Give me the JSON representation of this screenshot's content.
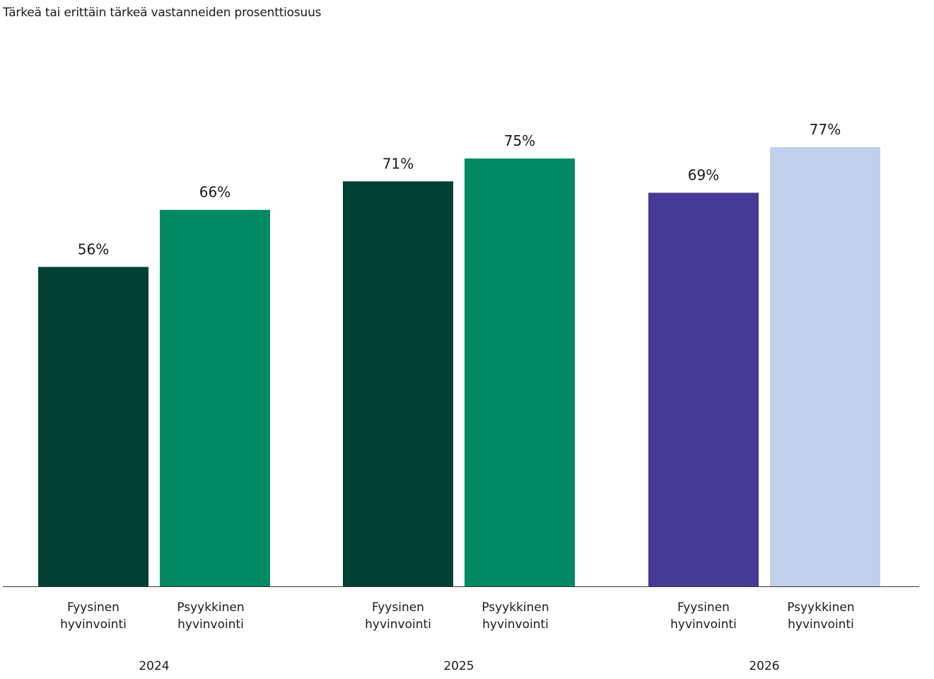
{
  "chart_data": {
    "type": "bar",
    "title": "",
    "subtitle": "Tärkeä tai erittäin tärkeä vastanneiden prosenttiosuus",
    "xlabel": "",
    "ylabel": "",
    "ylim": [
      0,
      100
    ],
    "grid": false,
    "groups": [
      {
        "label": "2024",
        "bars": [
          {
            "category_lines": [
              "Fyysinen",
              "hyvinvointi"
            ],
            "value": 56,
            "label": "56%",
            "color": "#014134"
          },
          {
            "category_lines": [
              "Psyykkinen",
              "hyvinvointi"
            ],
            "value": 66,
            "label": "66%",
            "color": "#008962"
          }
        ]
      },
      {
        "label": "2025",
        "bars": [
          {
            "category_lines": [
              "Fyysinen",
              "hyvinvointi"
            ],
            "value": 71,
            "label": "71%",
            "color": "#014134"
          },
          {
            "category_lines": [
              "Psyykkinen",
              "hyvinvointi"
            ],
            "value": 75,
            "label": "75%",
            "color": "#008962"
          }
        ]
      },
      {
        "label": "2026",
        "bars": [
          {
            "category_lines": [
              "Fyysinen",
              "hyvinvointi"
            ],
            "value": 69,
            "label": "69%",
            "color": "#473996"
          },
          {
            "category_lines": [
              "Psyykkinen",
              "hyvinvointi"
            ],
            "value": 77,
            "label": "77%",
            "color": "#c0cfec"
          }
        ]
      }
    ]
  }
}
